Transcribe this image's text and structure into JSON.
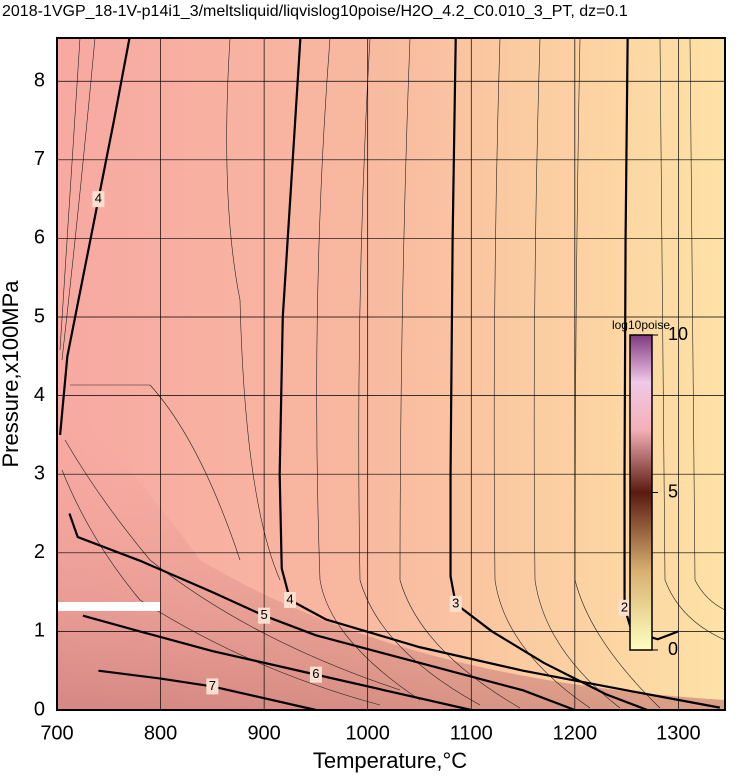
{
  "chart_data": {
    "type": "contour",
    "title": "2018-1VGP_18-1V-p14i1_3/meltsliquid/liqvislog10poise/H2O_4.2_C0.010_3_PT, dz=0.1",
    "x_label": "Temperature,°C",
    "y_label": "Pressure,x100MPa",
    "xlim": [
      700,
      1345
    ],
    "ylim": [
      0,
      8.55
    ],
    "xticks": [
      700,
      800,
      900,
      1000,
      1100,
      1200,
      1300
    ],
    "yticks": [
      0,
      1,
      2,
      3,
      4,
      5,
      6,
      7,
      8
    ],
    "grid": true,
    "contours": [
      {
        "level": 4,
        "x": [
          935,
          930,
          918,
          915,
          917,
          925,
          960,
          1050,
          1150,
          1250,
          1340
        ],
        "y": [
          8.55,
          7.5,
          5,
          3,
          1.8,
          1.4,
          1.15,
          0.8,
          0.5,
          0.25,
          0.03
        ]
      },
      {
        "level": 3,
        "x": [
          1085,
          1082,
          1080,
          1080,
          1085,
          1120,
          1170,
          1230,
          1270
        ],
        "y": [
          8.55,
          6,
          3,
          1.7,
          1.35,
          1.0,
          0.6,
          0.2,
          0
        ]
      },
      {
        "level": 2,
        "x": [
          1251,
          1249,
          1248,
          1248,
          1255,
          1280,
          1300
        ],
        "y": [
          8.55,
          6,
          3,
          1.3,
          1.0,
          0.9,
          1.0
        ]
      },
      {
        "level": 5,
        "x": [
          712,
          720,
          780,
          850,
          900,
          950,
          1050,
          1150,
          1200
        ],
        "y": [
          2.5,
          2.2,
          1.9,
          1.5,
          1.2,
          0.95,
          0.6,
          0.25,
          0
        ]
      },
      {
        "level": 6,
        "x": [
          725,
          780,
          850,
          950,
          1050,
          1100
        ],
        "y": [
          1.2,
          1.0,
          0.75,
          0.45,
          0.15,
          0
        ]
      },
      {
        "level": 7,
        "x": [
          740,
          800,
          850,
          900,
          950
        ],
        "y": [
          0.5,
          0.4,
          0.3,
          0.15,
          0
        ]
      },
      {
        "level": 4,
        "x": [
          703,
          710,
          725,
          740,
          755,
          770
        ],
        "y": [
          3.5,
          4.5,
          5.5,
          6.5,
          7.5,
          8.55
        ]
      }
    ],
    "colorbar": {
      "label": "log10poise",
      "lim": [
        0,
        10
      ],
      "ticks": [
        0,
        5,
        10
      ]
    }
  }
}
